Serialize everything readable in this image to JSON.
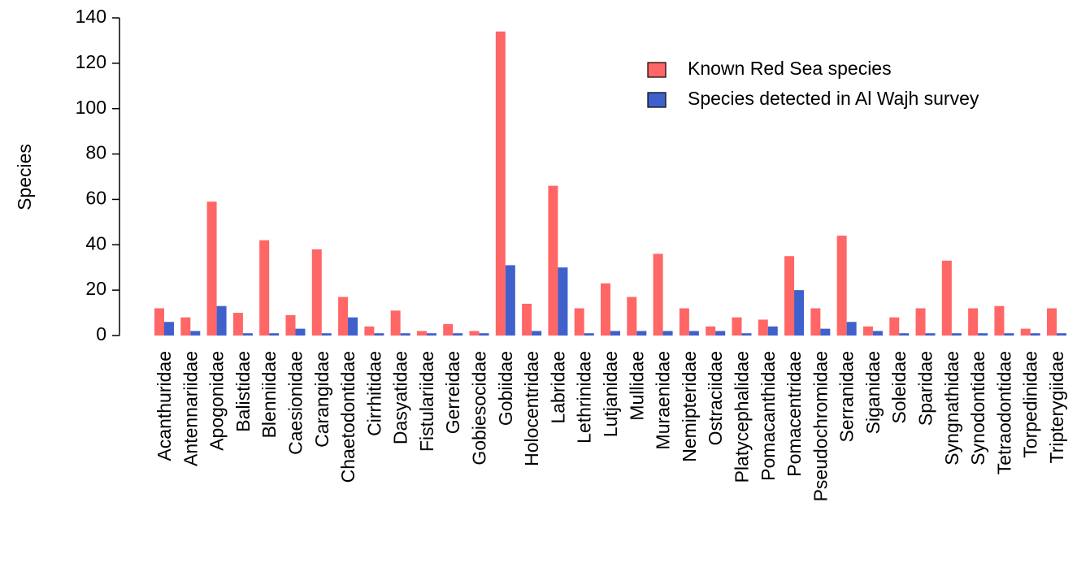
{
  "chart_data": {
    "type": "bar",
    "y_label": "Species",
    "categories": [
      "Acanthuridae",
      "Antennariidae",
      "Apogonidae",
      "Balistidae",
      "Blenniidae",
      "Caesionidae",
      "Carangidae",
      "Chaetodontidae",
      "Cirrhitidae",
      "Dasyatidae",
      "Fistulariidae",
      "Gerreidae",
      "Gobiesocidae",
      "Gobiidae",
      "Holocentridae",
      "Labridae",
      "Lethrinidae",
      "Lutjanidae",
      "Mullidae",
      "Muraenidae",
      "Nemipteridae",
      "Ostraciidae",
      "Platycephalidae",
      "Pomacanthidae",
      "Pomacentridae",
      "Pseudochromidae",
      "Serranidae",
      "Siganidae",
      "Soleidae",
      "Sparidae",
      "Syngnathidae",
      "Synodontidae",
      "Tetraodontidae",
      "Torpedinidae",
      "Tripterygiidae"
    ],
    "series": [
      {
        "name": "Known Red Sea species",
        "color": "#ff6666",
        "values": [
          12,
          8,
          59,
          10,
          42,
          9,
          38,
          17,
          4,
          11,
          2,
          5,
          2,
          134,
          14,
          66,
          12,
          23,
          17,
          36,
          12,
          4,
          8,
          7,
          35,
          12,
          44,
          4,
          8,
          12,
          33,
          12,
          13,
          3,
          12
        ]
      },
      {
        "name": "Species detected in Al Wajh survey",
        "color": "#4060cc",
        "values": [
          6,
          2,
          13,
          1,
          1,
          3,
          1,
          8,
          1,
          1,
          1,
          1,
          1,
          31,
          2,
          30,
          1,
          2,
          2,
          2,
          2,
          2,
          1,
          4,
          20,
          3,
          6,
          2,
          1,
          1,
          1,
          1,
          1,
          1,
          1
        ]
      }
    ],
    "ylim": [
      0,
      140
    ],
    "yticks": [
      0,
      20,
      40,
      60,
      80,
      100,
      120,
      140
    ],
    "legend": "top-right"
  }
}
